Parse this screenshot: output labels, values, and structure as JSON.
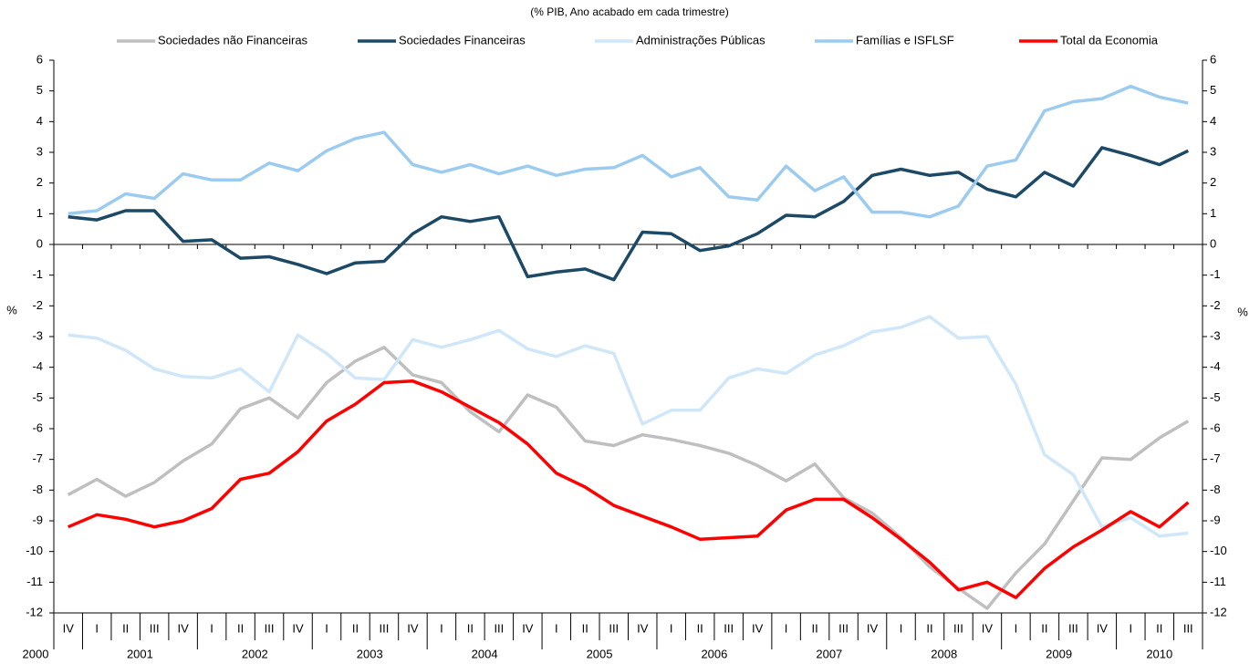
{
  "chart_data": {
    "type": "line",
    "title": "(% PIB, Ano acabado em cada trimestre)",
    "ylabel": "%",
    "y2label": "%",
    "categories": [
      "IV",
      "I",
      "II",
      "III",
      "IV",
      "I",
      "II",
      "III",
      "IV",
      "I",
      "II",
      "III",
      "IV",
      "I",
      "II",
      "III",
      "IV",
      "I",
      "II",
      "III",
      "IV",
      "I",
      "II",
      "III",
      "IV",
      "I",
      "II",
      "III",
      "IV",
      "I",
      "II",
      "III",
      "IV",
      "I",
      "II",
      "III",
      "IV",
      "I",
      "II",
      "III"
    ],
    "years": [
      "2000",
      "2001",
      "2002",
      "2003",
      "2004",
      "2005",
      "2006",
      "2007",
      "2008",
      "2009",
      "2010"
    ],
    "ylim": [
      -12,
      6
    ],
    "yticks": [
      -12,
      -11,
      -10,
      -9,
      -8,
      -7,
      -6,
      -5,
      -4,
      -3,
      -2,
      -1,
      0,
      1,
      2,
      3,
      4,
      5,
      6
    ],
    "y2lim": [
      -12,
      6
    ],
    "y2ticks": [
      -12,
      -11,
      -10,
      -9,
      -8,
      -7,
      -6,
      -5,
      -4,
      -3,
      -2,
      -1,
      0,
      1,
      2,
      3,
      4,
      5,
      6
    ],
    "legend": "top",
    "series": [
      {
        "name": "Sociedades não Financeiras",
        "color": "#bfbfbf",
        "values": [
          -8.15,
          -7.65,
          -8.2,
          -7.75,
          -7.05,
          -6.5,
          -5.35,
          -5.0,
          -5.65,
          -4.5,
          -3.8,
          -3.35,
          -4.25,
          -4.5,
          -5.45,
          -6.1,
          -4.9,
          -5.3,
          -6.4,
          -6.55,
          -6.2,
          -6.35,
          -6.55,
          -6.8,
          -7.2,
          -7.7,
          -7.15,
          -8.25,
          -8.75,
          -9.55,
          -10.5,
          -11.2,
          -11.85,
          -10.7,
          -9.75,
          -8.35,
          -6.95,
          -7.0,
          -6.3,
          -5.75
        ]
      },
      {
        "name": "Sociedades Financeiras",
        "color": "#1b4966",
        "values": [
          0.9,
          0.8,
          1.1,
          1.1,
          0.1,
          0.15,
          -0.45,
          -0.4,
          -0.65,
          -0.95,
          -0.6,
          -0.55,
          0.35,
          0.9,
          0.75,
          0.9,
          -1.05,
          -0.9,
          -0.8,
          -1.15,
          0.4,
          0.35,
          -0.2,
          -0.05,
          0.35,
          0.95,
          0.9,
          1.4,
          2.25,
          2.45,
          2.25,
          2.35,
          1.8,
          1.55,
          2.35,
          1.9,
          3.15,
          2.9,
          2.6,
          3.05
        ]
      },
      {
        "name": "Administrações Públicas",
        "color": "#cfe7f8",
        "values": [
          -2.95,
          -3.05,
          -3.45,
          -4.05,
          -4.3,
          -4.35,
          -4.05,
          -4.8,
          -2.95,
          -3.55,
          -4.35,
          -4.4,
          -3.1,
          -3.35,
          -3.1,
          -2.8,
          -3.4,
          -3.65,
          -3.3,
          -3.55,
          -5.85,
          -5.4,
          -5.4,
          -4.35,
          -4.05,
          -4.2,
          -3.6,
          -3.3,
          -2.85,
          -2.7,
          -2.35,
          -3.05,
          -3.0,
          -4.55,
          -6.85,
          -7.5,
          -9.2,
          -8.9,
          -9.5,
          -9.4
        ]
      },
      {
        "name": "Famílias e ISFLSF",
        "color": "#9ccbf0",
        "values": [
          1.0,
          1.1,
          1.65,
          1.5,
          2.3,
          2.1,
          2.1,
          2.65,
          2.4,
          3.05,
          3.45,
          3.65,
          2.6,
          2.35,
          2.6,
          2.3,
          2.55,
          2.25,
          2.45,
          2.5,
          2.9,
          2.2,
          2.5,
          1.55,
          1.45,
          2.55,
          1.75,
          2.2,
          1.05,
          1.05,
          0.9,
          1.25,
          2.55,
          2.75,
          4.35,
          4.65,
          4.75,
          5.15,
          4.8,
          4.6
        ]
      },
      {
        "name": "Total da Economia",
        "color": "#ff0000",
        "values": [
          -9.2,
          -8.8,
          -8.95,
          -9.2,
          -9.0,
          -8.6,
          -7.65,
          -7.45,
          -6.75,
          -5.75,
          -5.2,
          -4.5,
          -4.45,
          -4.8,
          -5.3,
          -5.8,
          -6.5,
          -7.45,
          -7.9,
          -8.5,
          -8.85,
          -9.2,
          -9.6,
          -9.55,
          -9.5,
          -8.65,
          -8.3,
          -8.3,
          -8.9,
          -9.6,
          -10.35,
          -11.25,
          -11.0,
          -11.5,
          -10.55,
          -9.85,
          -9.3,
          -8.7,
          -9.2,
          -8.4
        ]
      }
    ]
  }
}
